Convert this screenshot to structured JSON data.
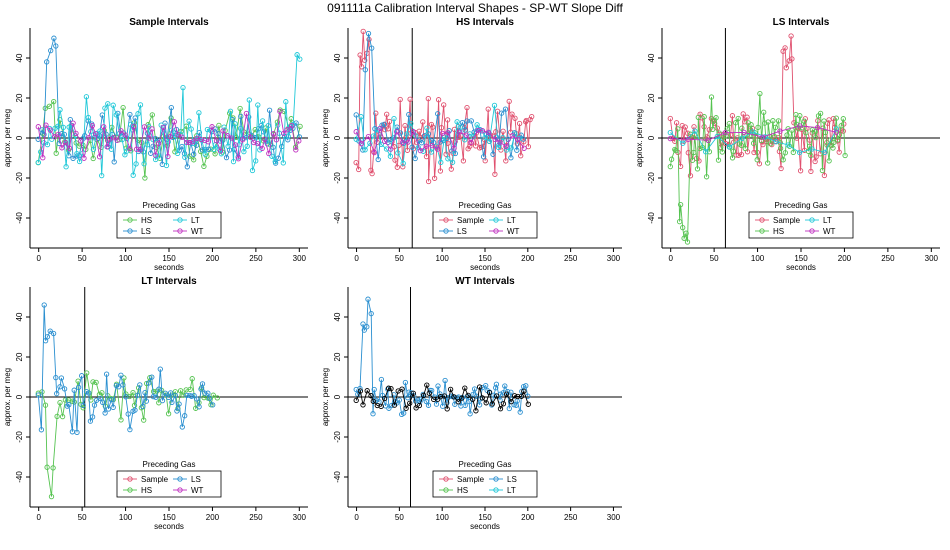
{
  "figure_title": "091111a   Calibration Interval Shapes - SP-WT Slope Diff",
  "colors": {
    "Sample": "#e0506e",
    "HS": "#55c350",
    "LS": "#2a8fd0",
    "LT": "#20c8d8",
    "WT": "#c030c0",
    "black": "#000000"
  },
  "chart_data": [
    {
      "type": "scatter",
      "title": "Sample Intervals",
      "xlabel": "seconds",
      "ylabel": "approx. per meg",
      "xlim": [
        -10,
        310
      ],
      "ylim": [
        -55,
        55
      ],
      "xticks": [
        0,
        50,
        100,
        150,
        200,
        250,
        300
      ],
      "yticks": [
        -40,
        -20,
        0,
        20,
        40
      ],
      "hline": 0,
      "vline": null,
      "legend": {
        "title": "Preceding Gas",
        "position": "bottom-center",
        "entries": [
          "HS",
          "LT",
          "LS",
          "WT"
        ],
        "ncol": 2
      },
      "series": [
        {
          "name": "HS",
          "color_key": "HS",
          "n": 72,
          "xmax": 300,
          "amp": 11,
          "seed": 11,
          "spike": [
            12,
            20
          ],
          "yclip": [
            -20,
            28
          ]
        },
        {
          "name": "LS",
          "color_key": "LS",
          "n": 90,
          "xmax": 300,
          "amp": 10,
          "seed": 23,
          "spike": [
            15,
            55
          ],
          "yclip": [
            -32,
            55
          ]
        },
        {
          "name": "LT",
          "color_key": "LT",
          "n": 95,
          "xmax": 300,
          "amp": 13,
          "seed": 37,
          "spike": [
            300,
            42
          ],
          "yclip": [
            -38,
            42
          ]
        },
        {
          "name": "WT",
          "color_key": "WT",
          "n": 70,
          "xmax": 300,
          "amp": 7,
          "seed": 41,
          "spike": null,
          "yclip": [
            -18,
            20
          ]
        }
      ]
    },
    {
      "type": "scatter",
      "title": "HS Intervals",
      "xlabel": "seconds",
      "ylabel": "approx. per meg",
      "xlim": [
        -10,
        310
      ],
      "ylim": [
        -55,
        55
      ],
      "xticks": [
        0,
        50,
        100,
        150,
        200,
        250,
        300
      ],
      "yticks": [
        -40,
        -20,
        0,
        20,
        40
      ],
      "hline": 0,
      "vline": 65,
      "legend": {
        "title": "Preceding Gas",
        "position": "bottom-center",
        "entries": [
          "Sample",
          "LT",
          "LS",
          "WT"
        ],
        "ncol": 2
      },
      "series": [
        {
          "name": "Sample",
          "color_key": "Sample",
          "n": 100,
          "xmax": 205,
          "amp": 13,
          "seed": 53,
          "spike": [
            10,
            55
          ],
          "yclip": [
            -50,
            55
          ]
        },
        {
          "name": "LS",
          "color_key": "LS",
          "n": 55,
          "xmax": 195,
          "amp": 10,
          "seed": 61,
          "spike": [
            15,
            55
          ],
          "yclip": [
            -30,
            55
          ]
        },
        {
          "name": "LT",
          "color_key": "LT",
          "n": 40,
          "xmax": 190,
          "amp": 9,
          "seed": 71,
          "spike": null,
          "yclip": [
            -20,
            35
          ]
        },
        {
          "name": "WT",
          "color_key": "WT",
          "n": 30,
          "xmax": 195,
          "amp": 5,
          "seed": 79,
          "spike": null,
          "yclip": [
            -12,
            12
          ]
        }
      ]
    },
    {
      "type": "scatter",
      "title": "LS Intervals",
      "xlabel": "seconds",
      "ylabel": "approx. per meg",
      "xlim": [
        -10,
        310
      ],
      "ylim": [
        -55,
        55
      ],
      "xticks": [
        0,
        50,
        100,
        150,
        200,
        250,
        300
      ],
      "yticks": [
        -40,
        -20,
        0,
        20,
        40
      ],
      "hline": 0,
      "vline": 63,
      "legend": {
        "title": "Preceding Gas",
        "position": "bottom-center",
        "entries": [
          "Sample",
          "LT",
          "HS",
          "WT"
        ],
        "ncol": 2
      },
      "series": [
        {
          "name": "Sample",
          "color_key": "Sample",
          "n": 95,
          "xmax": 200,
          "amp": 10,
          "seed": 83,
          "spike": [
            135,
            55
          ],
          "yclip": [
            -48,
            55
          ]
        },
        {
          "name": "HS",
          "color_key": "HS",
          "n": 100,
          "xmax": 200,
          "amp": 11,
          "seed": 97,
          "spike": [
            15,
            -55
          ],
          "yclip": [
            -55,
            40
          ]
        },
        {
          "name": "LT",
          "color_key": "LT",
          "n": 15,
          "xmax": 190,
          "amp": 6,
          "seed": 101,
          "spike": null,
          "yclip": [
            -15,
            15
          ]
        },
        {
          "name": "WT",
          "color_key": "WT",
          "n": 10,
          "xmax": 190,
          "amp": 4,
          "seed": 103,
          "spike": null,
          "yclip": [
            -10,
            10
          ]
        }
      ]
    },
    {
      "type": "scatter",
      "title": "LT Intervals",
      "xlabel": "seconds",
      "ylabel": "approx. per meg",
      "xlim": [
        -10,
        310
      ],
      "ylim": [
        -55,
        55
      ],
      "xticks": [
        0,
        50,
        100,
        150,
        200,
        250,
        300
      ],
      "yticks": [
        -40,
        -20,
        0,
        20,
        40
      ],
      "hline": 0,
      "vline": 53,
      "legend": {
        "title": "Preceding Gas",
        "position": "bottom-center",
        "entries": [
          "Sample",
          "LS",
          "HS",
          "WT"
        ],
        "ncol": 2
      },
      "series": [
        {
          "name": "HS",
          "color_key": "HS",
          "n": 60,
          "xmax": 205,
          "amp": 7,
          "seed": 107,
          "spike": [
            15,
            -55
          ],
          "yclip": [
            -55,
            12
          ]
        },
        {
          "name": "LS",
          "color_key": "LS",
          "n": 75,
          "xmax": 200,
          "amp": 10,
          "seed": 113,
          "spike": [
            12,
            46
          ],
          "yclip": [
            -34,
            46
          ]
        }
      ]
    },
    {
      "type": "scatter",
      "title": "WT Intervals",
      "xlabel": "seconds",
      "ylabel": "approx. per meg",
      "xlim": [
        -10,
        310
      ],
      "ylim": [
        -55,
        55
      ],
      "xticks": [
        0,
        50,
        100,
        150,
        200,
        250,
        300
      ],
      "yticks": [
        -40,
        -20,
        0,
        20,
        40
      ],
      "hline": 0,
      "vline": 63,
      "legend": {
        "title": "Preceding Gas",
        "position": "bottom-center",
        "entries": [
          "Sample",
          "LS",
          "HS",
          "LT"
        ],
        "ncol": 2
      },
      "series": [
        {
          "name": "LS",
          "color_key": "LS",
          "n": 85,
          "xmax": 200,
          "amp": 6,
          "seed": 127,
          "spike": [
            12,
            55
          ],
          "yclip": [
            -14,
            55
          ]
        },
        {
          "name": "Unlabeled",
          "color_key": "black",
          "n": 50,
          "xmax": 200,
          "amp": 4,
          "seed": 131,
          "spike": null,
          "yclip": [
            -10,
            10
          ]
        }
      ]
    }
  ]
}
